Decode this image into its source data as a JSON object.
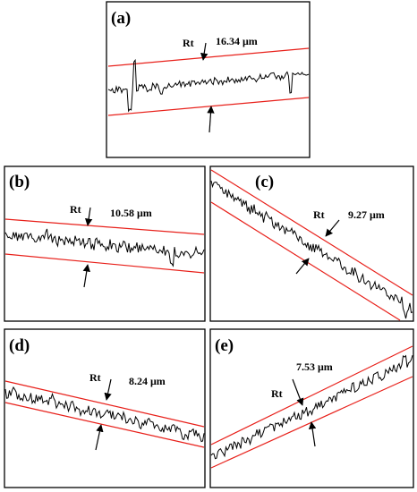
{
  "panels": [
    {
      "id": "a",
      "label": "(a)",
      "rt_label": "Rt",
      "value_text": "16.34 μm",
      "slope": "ascending"
    },
    {
      "id": "b",
      "label": "(b)",
      "rt_label": "Rt",
      "value_text": "10.58 μm",
      "slope": "descending"
    },
    {
      "id": "c",
      "label": "(c)",
      "rt_label": "Rt",
      "value_text": "9.27 μm",
      "slope": "descending"
    },
    {
      "id": "d",
      "label": "(d)",
      "rt_label": "Rt",
      "value_text": "8.24 μm",
      "slope": "descending"
    },
    {
      "id": "e",
      "label": "(e)",
      "rt_label": "Rt",
      "value_text": "7.53 μm",
      "slope": "ascending"
    }
  ],
  "colors": {
    "frame": "#000000",
    "envelope": "#e8201a",
    "profile": "#000000",
    "arrow": "#000000"
  }
}
